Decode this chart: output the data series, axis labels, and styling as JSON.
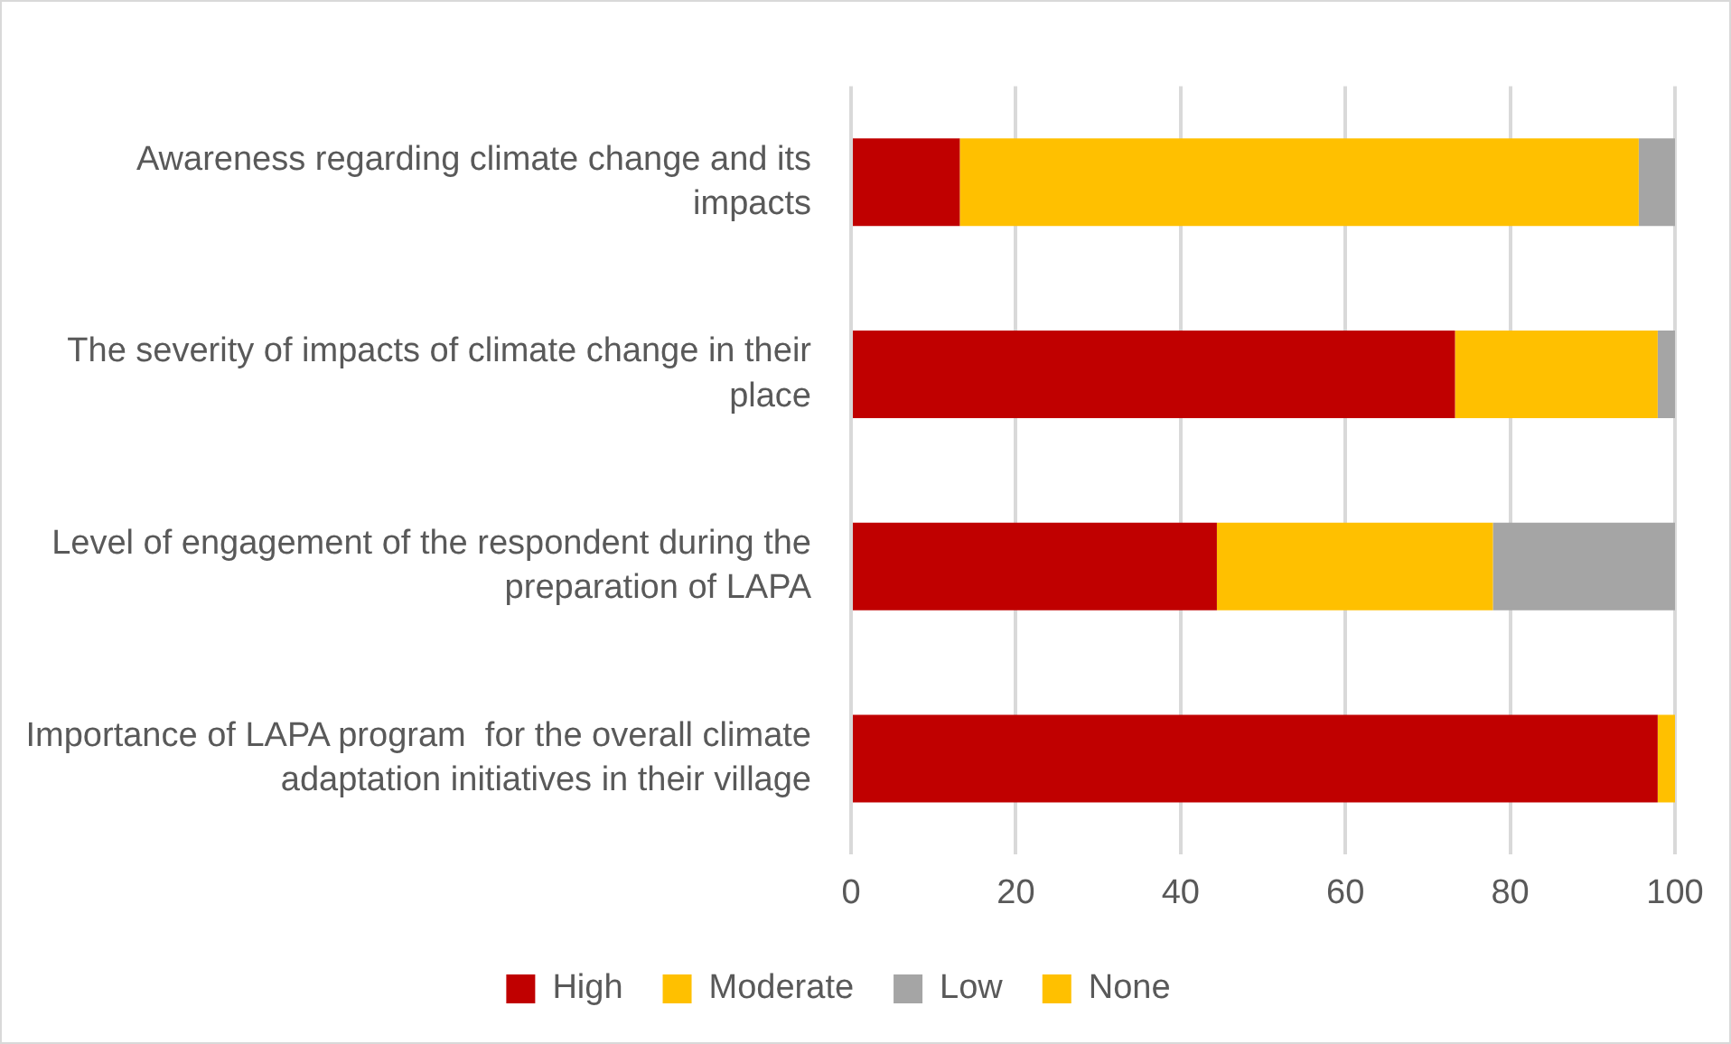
{
  "chart_data": {
    "type": "bar",
    "orientation": "horizontal",
    "stacked": true,
    "categories": [
      "Awareness regarding climate change and its impacts",
      "The severity of impacts of climate change in their place",
      "Level of engagement of the respondent during the preparation of LAPA",
      "Importance of LAPA program  for the overall climate adaptation initiatives in their village"
    ],
    "series": [
      {
        "name": "High",
        "color": "#c00000",
        "values": [
          13.2,
          73.3,
          44.4,
          97.9
        ]
      },
      {
        "name": "Moderate",
        "color": "#ffc000",
        "values": [
          82.4,
          24.6,
          33.5,
          2.1
        ]
      },
      {
        "name": "Low",
        "color": "#a5a5a5",
        "values": [
          4.4,
          2.1,
          22.1,
          0
        ]
      },
      {
        "name": "None",
        "color": "#ffc000",
        "values": [
          0,
          0,
          0,
          0
        ]
      }
    ],
    "xlim": [
      0,
      100
    ],
    "xticks": [
      0,
      20,
      40,
      60,
      80,
      100
    ],
    "grid": "x",
    "legend": "bottom"
  }
}
